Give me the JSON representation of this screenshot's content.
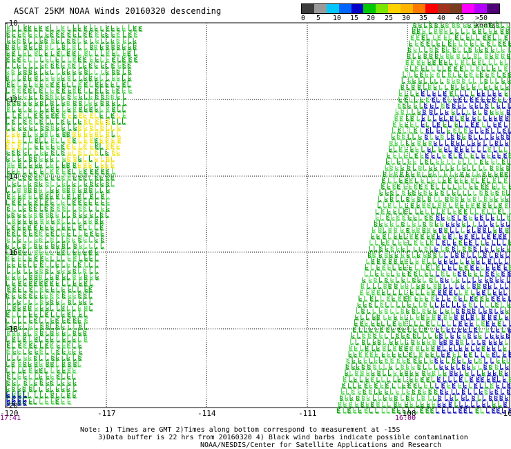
{
  "title": "ASCAT 25KM NOAA Winds 20160320 descending",
  "legend": {
    "colors": [
      "#3c3c3c",
      "#9a9a9a",
      "#00c8ff",
      "#0064ff",
      "#0000c8",
      "#00c800",
      "#78e600",
      "#ffd200",
      "#ffb400",
      "#ff7800",
      "#ff0000",
      "#a0321e",
      "#783c1e",
      "#ff00ff",
      "#b400ff",
      "#500078"
    ],
    "labels": [
      "0",
      "5",
      "10",
      "15",
      "20",
      "25",
      "30",
      "35",
      "40",
      "45",
      ">50 knots"
    ]
  },
  "axes": {
    "lat_labels": [
      "-10",
      "-12",
      "-14",
      "-16",
      "-18",
      "-20"
    ],
    "lon_labels": [
      "-120",
      "-117",
      "-114",
      "-111",
      "-108",
      "-10"
    ]
  },
  "times": {
    "left": "17:41",
    "right": "16:00"
  },
  "notes": [
    "Note: 1) Times are GMT 2)Times along bottom correspond to measurement at -15S",
    "3)Data buffer is 22 hrs from 20160320 4) Black wind barbs indicate possible contamination",
    "NOAA/NESDIS/Center for Satellite Applications and Research"
  ],
  "barb_colors": {
    "green": "#00a000",
    "light_green": "#40d040",
    "blue": "#0000b4",
    "yellow": "#f0e000"
  }
}
